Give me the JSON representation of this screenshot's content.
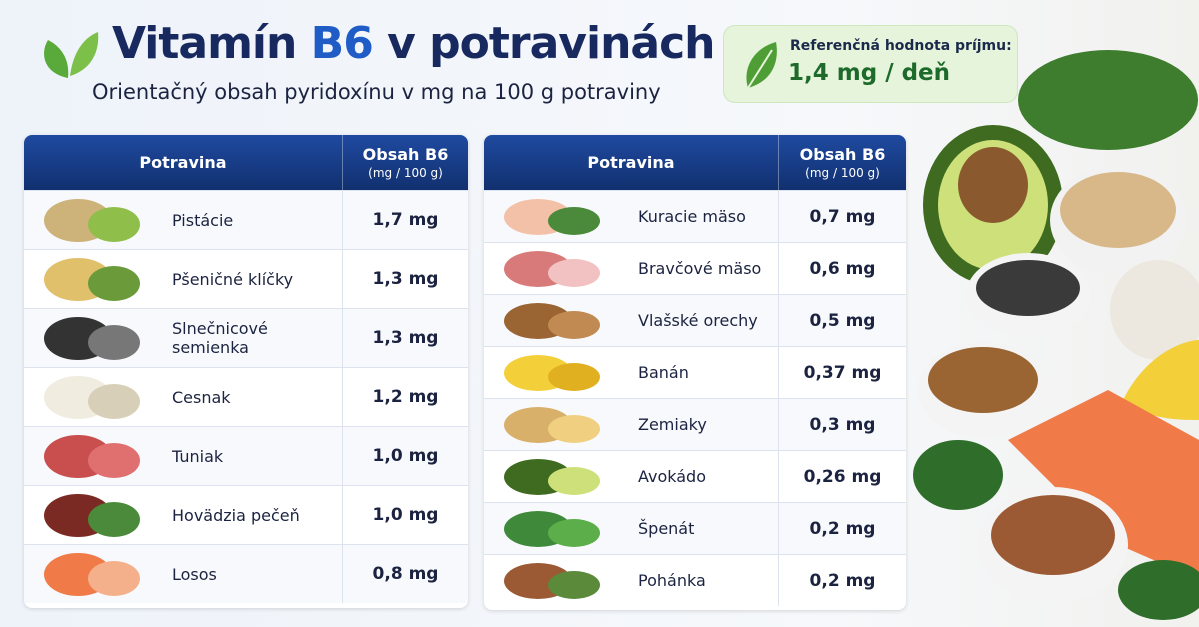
{
  "header": {
    "title": {
      "before": "Vitamín",
      "highlight": "B6",
      "after": "v potravinách"
    },
    "subtitle": "Orientačný obsah pyridoxínu v mg na 100 g potraviny"
  },
  "reference": {
    "label": "Referenčná hodnota príjmu:",
    "value": "1,4 mg / deň"
  },
  "tables": [
    {
      "header": {
        "food": "Potravina",
        "content": "Obsah B6",
        "unit": "(mg / 100 g)"
      },
      "rows": [
        [
          "Pistácie",
          "1,7 mg"
        ],
        [
          "Pšeničné klíčky",
          "1,3 mg"
        ],
        [
          "Slnečnicové semienka",
          "1,3 mg"
        ],
        [
          "Cesnak",
          "1,2 mg"
        ],
        [
          "Tuniak",
          "1,0 mg"
        ],
        [
          "Hovädzia pečeň",
          "1,0 mg"
        ],
        [
          "Losos",
          "0,8 mg"
        ]
      ]
    },
    {
      "header": {
        "food": "Potravina",
        "content": "Obsah B6",
        "unit": "(mg / 100 g)"
      },
      "rows": [
        [
          "Kuracie mäso",
          "0,7 mg"
        ],
        [
          "Bravčové mäso",
          "0,6 mg"
        ],
        [
          "Vlašské orechy",
          "0,5 mg"
        ],
        [
          "Banán",
          "0,37 mg"
        ],
        [
          "Zemiaky",
          "0,3 mg"
        ],
        [
          "Avokádo",
          "0,26 mg"
        ],
        [
          "Špenát",
          "0,2 mg"
        ],
        [
          "Pohánka",
          "0,2 mg"
        ]
      ]
    }
  ]
}
